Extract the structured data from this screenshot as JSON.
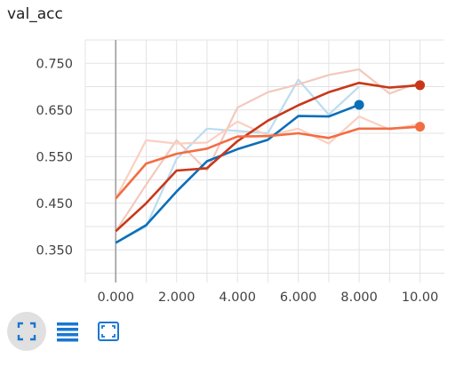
{
  "chart_data": {
    "type": "line",
    "title": "val_acc",
    "xlabel": "",
    "ylabel": "",
    "xlim": [
      -1,
      10.8
    ],
    "ylim": [
      0.28,
      0.8
    ],
    "x_ticks": [
      0,
      2,
      4,
      6,
      8,
      10
    ],
    "x_tick_labels": [
      "0.000",
      "2.000",
      "4.000",
      "6.000",
      "8.000",
      "10.00"
    ],
    "y_ticks": [
      0.35,
      0.45,
      0.55,
      0.65,
      0.75
    ],
    "y_tick_labels": [
      "0.350",
      "0.450",
      "0.550",
      "0.650",
      "0.750"
    ],
    "grid": true,
    "series": [
      {
        "color": "#0b6fb8",
        "raw_color": "#bcdcf0",
        "x": [
          0,
          1,
          2,
          3,
          4,
          5,
          6,
          7,
          8
        ],
        "raw_values": [
          0.365,
          0.4,
          0.545,
          0.61,
          0.605,
          0.6,
          0.715,
          0.64,
          0.7
        ],
        "smoothed_values": [
          0.365,
          0.403,
          0.475,
          0.54,
          0.566,
          0.586,
          0.637,
          0.636,
          0.661
        ]
      },
      {
        "color": "#c7381a",
        "raw_color": "#f2c9bc",
        "x": [
          0,
          1,
          2,
          3,
          4,
          5,
          6,
          7,
          8,
          9,
          10
        ],
        "raw_values": [
          0.39,
          0.49,
          0.585,
          0.52,
          0.655,
          0.688,
          0.705,
          0.725,
          0.737,
          0.685,
          0.71
        ],
        "smoothed_values": [
          0.39,
          0.45,
          0.52,
          0.525,
          0.583,
          0.627,
          0.66,
          0.688,
          0.708,
          0.698,
          0.703
        ]
      },
      {
        "color": "#f26d43",
        "raw_color": "#fad0c0",
        "x": [
          0,
          1,
          2,
          3,
          4,
          5,
          6,
          7,
          8,
          9,
          10
        ],
        "raw_values": [
          0.46,
          0.585,
          0.578,
          0.58,
          0.625,
          0.595,
          0.61,
          0.578,
          0.636,
          0.608,
          0.62
        ],
        "smoothed_values": [
          0.46,
          0.535,
          0.556,
          0.567,
          0.593,
          0.594,
          0.6,
          0.59,
          0.61,
          0.61,
          0.614
        ]
      }
    ]
  },
  "toolbar": {
    "buttons": [
      {
        "icon": "fit-to-data-icon",
        "active": true,
        "color": "#1976d2"
      },
      {
        "icon": "list-lines-icon",
        "active": false,
        "color": "#1976d2"
      },
      {
        "icon": "expand-box-icon",
        "active": false,
        "color": "#1976d2"
      }
    ]
  }
}
